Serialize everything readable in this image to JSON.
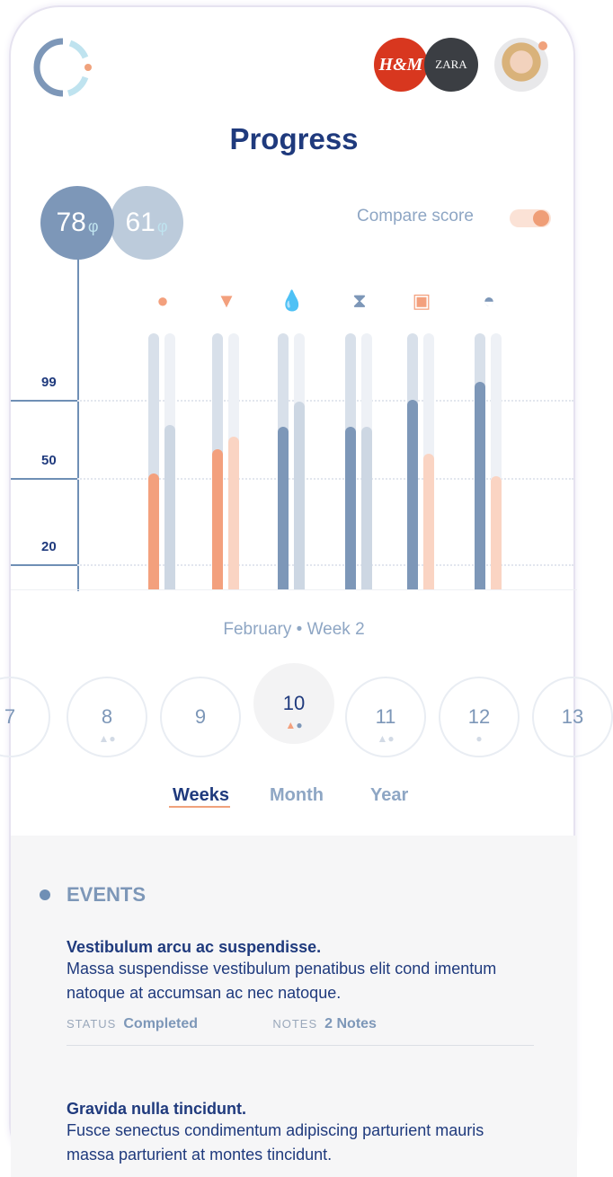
{
  "header": {
    "title": "Progress",
    "brands": [
      "H&M",
      "ZARA"
    ]
  },
  "scores": {
    "current": "78",
    "compare": "61",
    "unit": "φ"
  },
  "compare_toggle": {
    "label": "Compare score",
    "on": true
  },
  "chart_data": {
    "type": "bar",
    "categories": [
      "sun",
      "bowl",
      "water",
      "scale",
      "photo",
      "dome"
    ],
    "series": [
      {
        "name": "current",
        "values": [
          53,
          68,
          82,
          82,
          99,
          110
        ]
      },
      {
        "name": "compare",
        "values": [
          83,
          76,
          98,
          82,
          65,
          51
        ]
      }
    ],
    "series_colors": {
      "current": [
        "#f3a07d",
        "#f3a07d",
        "#7d97b8",
        "#7d97b8",
        "#7d97b8",
        "#7d97b8"
      ],
      "compare": [
        "#cdd7e3",
        "#fad4c3",
        "#cdd7e3",
        "#cdd7e3",
        "#fad4c3",
        "#fad4c3"
      ]
    },
    "yticks": [
      99,
      50,
      20
    ],
    "ylim": [
      0,
      140
    ]
  },
  "period": {
    "label": "February • Week 2"
  },
  "weeks": [
    {
      "n": "7",
      "marks": ""
    },
    {
      "n": "8",
      "marks": "▲●"
    },
    {
      "n": "9",
      "marks": ""
    },
    {
      "n": "10",
      "marks": "▲●"
    },
    {
      "n": "11",
      "marks": "▲●"
    },
    {
      "n": "12",
      "marks": "●"
    },
    {
      "n": "13",
      "marks": ""
    }
  ],
  "tabs": [
    "Weeks",
    "Month",
    "Year"
  ],
  "events": {
    "heading": "EVENTS",
    "items": [
      {
        "title": "Vestibulum arcu ac suspendisse.",
        "body": "Massa suspendisse vestibulum penatibus elit cond imentum natoque at accumsan ac nec natoque.",
        "status_label": "STATUS",
        "status": "Completed",
        "notes_label": "NOTES",
        "notes": "2 Notes"
      },
      {
        "title": "Gravida nulla tincidunt.",
        "body": "Fusce senectus condimentum adipiscing parturient mauris massa parturient at montes tincidunt."
      }
    ]
  }
}
